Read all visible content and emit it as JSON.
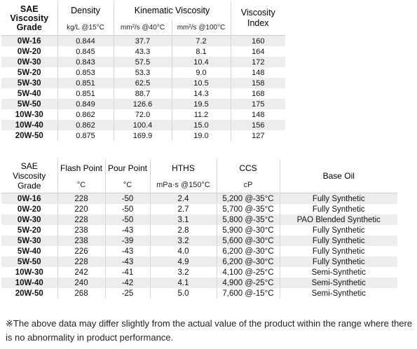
{
  "table1": {
    "headers": {
      "grade": "SAE\nViscosity\nGrade",
      "density": "Density",
      "kinematic": "Kinematic Viscosity",
      "index": "Viscosity\nIndex",
      "density_unit": "kg/L @15°C",
      "kv40_unit": "mm²/s @40°C",
      "kv100_unit": "mm²/s @100°C"
    },
    "rows": [
      {
        "grade": "0W-16",
        "density": "0.844",
        "kv40": "37.7",
        "kv100": "7.2",
        "vi": "160"
      },
      {
        "grade": "0W-20",
        "density": "0.845",
        "kv40": "43.3",
        "kv100": "8.1",
        "vi": "164"
      },
      {
        "grade": "0W-30",
        "density": "0.843",
        "kv40": "57.5",
        "kv100": "10.4",
        "vi": "172"
      },
      {
        "grade": "5W-20",
        "density": "0.853",
        "kv40": "53.3",
        "kv100": "9.0",
        "vi": "148"
      },
      {
        "grade": "5W-30",
        "density": "0.851",
        "kv40": "62.5",
        "kv100": "10.5",
        "vi": "158"
      },
      {
        "grade": "5W-40",
        "density": "0.851",
        "kv40": "88.7",
        "kv100": "14.3",
        "vi": "168"
      },
      {
        "grade": "5W-50",
        "density": "0.849",
        "kv40": "126.6",
        "kv100": "19.5",
        "vi": "175"
      },
      {
        "grade": "10W-30",
        "density": "0.862",
        "kv40": "72.0",
        "kv100": "11.2",
        "vi": "148"
      },
      {
        "grade": "10W-40",
        "density": "0.862",
        "kv40": "100.4",
        "kv100": "15.0",
        "vi": "156"
      },
      {
        "grade": "20W-50",
        "density": "0.875",
        "kv40": "169.9",
        "kv100": "19.0",
        "vi": "127"
      }
    ]
  },
  "table2": {
    "headers": {
      "grade": "SAE\nViscosity\nGrade",
      "flash": "Flash Point",
      "pour": "Pour Point",
      "hths": "HTHS",
      "ccs": "CCS",
      "base": "Base Oil",
      "flash_unit": "°C",
      "pour_unit": "°C",
      "hths_unit": "mPa·s @150°C",
      "ccs_unit": "cP"
    },
    "rows": [
      {
        "grade": "0W-16",
        "flash": "228",
        "pour": "-50",
        "hths": "2.4",
        "ccs": "5,200 @-35°C",
        "base": "Fully Synthetic"
      },
      {
        "grade": "0W-20",
        "flash": "220",
        "pour": "-50",
        "hths": "2.7",
        "ccs": "5,700 @-35°C",
        "base": "Fully Synthetic"
      },
      {
        "grade": "0W-30",
        "flash": "228",
        "pour": "-50",
        "hths": "3.1",
        "ccs": "5,800 @-35°C",
        "base": "PAO Blended Synthetic"
      },
      {
        "grade": "5W-20",
        "flash": "238",
        "pour": "-43",
        "hths": "2.8",
        "ccs": "5,900 @-30°C",
        "base": "Fully Synthetic"
      },
      {
        "grade": "5W-30",
        "flash": "238",
        "pour": "-39",
        "hths": "3.2",
        "ccs": "5,600 @-30°C",
        "base": "Fully Synthetic"
      },
      {
        "grade": "5W-40",
        "flash": "226",
        "pour": "-43",
        "hths": "4.0",
        "ccs": "6,200 @-30°C",
        "base": "Fully Synthetic"
      },
      {
        "grade": "5W-50",
        "flash": "228",
        "pour": "-43",
        "hths": "4.9",
        "ccs": "6,200 @-30°C",
        "base": "Fully Synthetic"
      },
      {
        "grade": "10W-30",
        "flash": "242",
        "pour": "-41",
        "hths": "3.2",
        "ccs": "4,100 @-25°C",
        "base": "Semi-Synthetic"
      },
      {
        "grade": "10W-40",
        "flash": "240",
        "pour": "-42",
        "hths": "4.1",
        "ccs": "4,900 @-25°C",
        "base": "Semi-Synthetic"
      },
      {
        "grade": "20W-50",
        "flash": "268",
        "pour": "-25",
        "hths": "5.0",
        "ccs": "7,600 @-15°C",
        "base": "Semi-Synthetic"
      }
    ]
  },
  "note": "※The above data may differ slightly from the actual value of the product within the range where there is no abnormality in product performance."
}
